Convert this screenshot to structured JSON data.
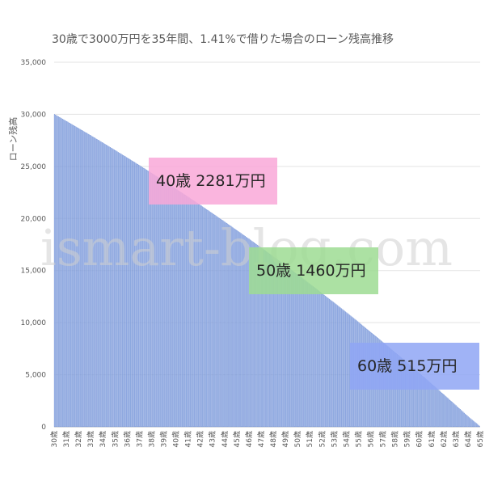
{
  "chart_data": {
    "type": "bar",
    "title": "30歳で3000万円を35年間、1.41%で借りた場合のローン残高推移",
    "ylabel": "ローン残高",
    "xlabel": "",
    "ylim": [
      0,
      35000
    ],
    "yticks": [
      "0",
      "5,000",
      "10,000",
      "15,000",
      "20,000",
      "25,000",
      "30,000",
      "35,000"
    ],
    "ytick_values": [
      0,
      5000,
      10000,
      15000,
      20000,
      25000,
      30000,
      35000
    ],
    "categories": [
      "30歳",
      "31歳",
      "32歳",
      "33歳",
      "34歳",
      "35歳",
      "36歳",
      "37歳",
      "38歳",
      "39歳",
      "40歳",
      "41歳",
      "42歳",
      "43歳",
      "44歳",
      "45歳",
      "46歳",
      "47歳",
      "48歳",
      "49歳",
      "50歳",
      "51歳",
      "52歳",
      "53歳",
      "54歳",
      "55歳",
      "56歳",
      "57歳",
      "58歳",
      "59歳",
      "60歳",
      "61歳",
      "62歳",
      "63歳",
      "64歳",
      "65歳"
    ],
    "values": [
      30000,
      29326,
      28643,
      27950,
      27248,
      26536,
      25814,
      25082,
      24340,
      23587,
      22824,
      22051,
      21266,
      20471,
      19665,
      18847,
      18018,
      17178,
      16326,
      15462,
      14586,
      13698,
      12798,
      11885,
      10960,
      10022,
      9071,
      8106,
      7129,
      6138,
      5133,
      4114,
      3081,
      2034,
      972,
      0
    ],
    "bars_per_year": 12,
    "bar_color": "#a8bde8",
    "bar_edge_color": "#5a7fd0",
    "grid": true,
    "annotations": [
      {
        "text": "40歳 2281万円",
        "color": "#f9a8d8"
      },
      {
        "text": "50歳 1460万円",
        "color": "#9edc93"
      },
      {
        "text": "60歳 515万円",
        "color": "#8fa6f5"
      }
    ],
    "watermark": "ismart-blog.com"
  }
}
